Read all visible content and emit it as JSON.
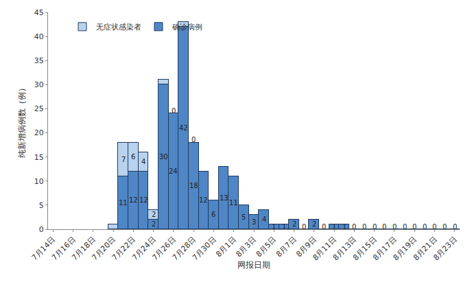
{
  "chart_data": {
    "type": "bar",
    "stacked": true,
    "data_labels": true,
    "legend": "top-left",
    "grid": false,
    "x_label": "网报日期",
    "y_label": "纯新增病例数（例）",
    "categories": [
      "7月14日",
      null,
      "7月16日",
      null,
      "7月18日",
      null,
      "7月20日",
      null,
      "7月22日",
      null,
      "7月24日",
      null,
      "7月26日",
      null,
      "7月28日",
      null,
      "7月30日",
      null,
      "8月1日",
      null,
      "8月3日",
      null,
      "8月5日",
      null,
      "8月7日",
      null,
      "8月9日",
      null,
      "8月11日",
      null,
      "8月13日",
      null,
      "8月15日",
      null,
      "8月17日",
      null,
      "8月19日",
      null,
      "8月21日",
      null,
      "8月23日"
    ],
    "ylim": [
      0,
      45
    ],
    "yticks": [
      0,
      5,
      10,
      15,
      20,
      25,
      30,
      35,
      40,
      45
    ],
    "series": [
      {
        "name": "确诊病例",
        "color": "#4f86c6",
        "values": [
          null,
          null,
          null,
          null,
          null,
          null,
          0,
          11,
          12,
          12,
          2,
          30,
          24,
          42,
          18,
          12,
          6,
          13,
          11,
          5,
          3,
          4,
          1,
          1,
          2,
          0,
          2,
          0,
          1,
          1,
          0,
          0,
          0,
          0,
          0,
          0,
          0,
          0,
          0,
          0,
          0
        ],
        "value_labels": [
          null,
          null,
          null,
          null,
          null,
          null,
          null,
          "11",
          "12",
          "12",
          "2",
          "30",
          "24",
          "42",
          "18",
          "12",
          "6",
          "13",
          "11",
          "5",
          "3",
          "4",
          "1",
          "1",
          "2",
          "0",
          "2",
          "0",
          "1",
          "1",
          "0",
          "0",
          "0",
          "0",
          "0",
          "0",
          "0",
          "0",
          "0",
          "0",
          "0"
        ]
      },
      {
        "name": "无症状感染者",
        "color": "#b9d3ee",
        "values": [
          null,
          null,
          null,
          null,
          null,
          null,
          1,
          7,
          6,
          4,
          2,
          1,
          0,
          1,
          0,
          null,
          null,
          null,
          null,
          null,
          null,
          null,
          null,
          null,
          null,
          null,
          null,
          null,
          null,
          null,
          null,
          null,
          null,
          null,
          null,
          null,
          null,
          null,
          null,
          null,
          null
        ],
        "value_labels": [
          null,
          null,
          null,
          null,
          null,
          null,
          null,
          "7",
          "6",
          "4",
          "2",
          null,
          "0",
          null,
          "0",
          null,
          null,
          null,
          null,
          null,
          null,
          null,
          null,
          null,
          null,
          null,
          null,
          null,
          null,
          null,
          null,
          null,
          null,
          null,
          null,
          null,
          null,
          null,
          null,
          null,
          null
        ]
      }
    ]
  }
}
